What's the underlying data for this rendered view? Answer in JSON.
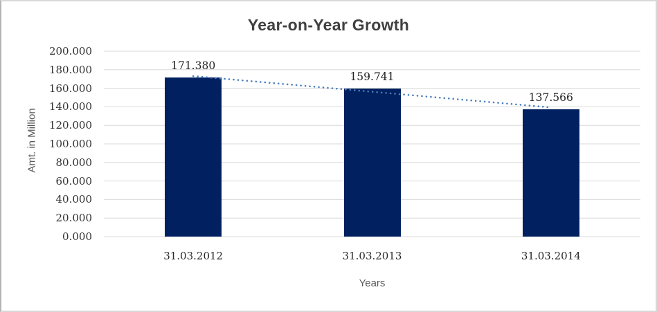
{
  "chart_data": {
    "type": "bar",
    "title": "Year-on-Year Growth",
    "categories": [
      "31.03.2012",
      "31.03.2013",
      "31.03.2014"
    ],
    "values": [
      171.38,
      159.741,
      137.566
    ],
    "data_labels": [
      "171.380",
      "159.741",
      "137.566"
    ],
    "xlabel": "Years",
    "ylabel": "Amt. in Million",
    "ylim": [
      0,
      200
    ],
    "ytick_step": 20,
    "ytick_labels": [
      "200.000",
      "180.000",
      "160.000",
      "140.000",
      "120.000",
      "100.000",
      "80.000",
      "60.000",
      "40.000",
      "20.000",
      "0.000"
    ],
    "grid": true,
    "legend": false,
    "bar_color": "#002060",
    "gridline_color": "#d9d9d9",
    "tick_label_color": "#303030",
    "category_label_color": "#262626",
    "title_color": "#404040",
    "axis_title_color": "#595959",
    "trendline": {
      "type": "linear",
      "style": "dotted",
      "color": "#4a7ebb"
    }
  }
}
